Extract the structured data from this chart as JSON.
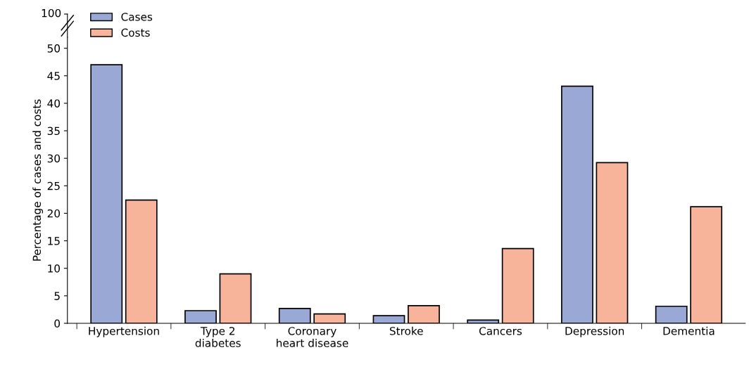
{
  "chart_data": {
    "type": "bar",
    "ylabel": "Percentage of cases and costs",
    "categories": [
      "Hypertension",
      "Type 2\ndiabetes",
      "Coronary\nheart disease",
      "Stroke",
      "Cancers",
      "Depression",
      "Dementia"
    ],
    "series": [
      {
        "name": "Cases",
        "color": "#9aa8d6",
        "values": [
          47,
          2.3,
          2.7,
          1.4,
          0.6,
          43.1,
          3.1
        ]
      },
      {
        "name": "Costs",
        "color": "#f7b49b",
        "values": [
          22.4,
          9.0,
          1.7,
          3.2,
          13.6,
          29.2,
          21.2
        ]
      }
    ],
    "ylim": [
      0,
      52
    ],
    "yticks": [
      0,
      5,
      10,
      15,
      20,
      25,
      30,
      35,
      40,
      45,
      50
    ],
    "annotations": [
      "100"
    ],
    "grid": false,
    "legend": "top left"
  }
}
